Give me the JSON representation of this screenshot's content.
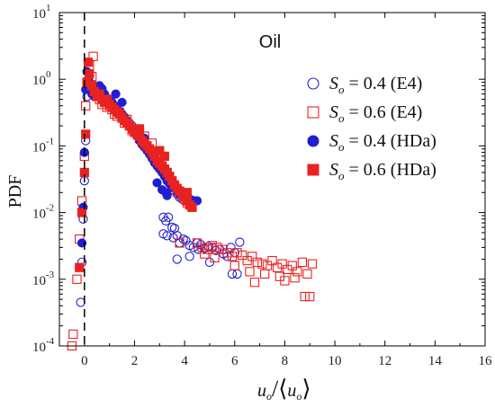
{
  "chart_data": {
    "type": "scatter",
    "title": "Oil",
    "ylabel": "PDF",
    "xlabel": "u_o/⟨u_o⟩",
    "xlabel_parts": {
      "lead": "u",
      "sub": "o",
      "slash": "/",
      "open": "⟨",
      "inner": "u",
      "inner_sub": "o",
      "close": "⟩"
    },
    "xlim": [
      -1,
      16
    ],
    "ylim_log10": [
      -4,
      1
    ],
    "yscale": "log",
    "x_ticks": [
      0,
      2,
      4,
      6,
      8,
      10,
      12,
      14,
      16
    ],
    "x_tick_labels": [
      "0",
      "2",
      "4",
      "6",
      "8",
      "10",
      "12",
      "14",
      "16"
    ],
    "y_ticks_exp": [
      -4,
      -3,
      -2,
      -1,
      0,
      1
    ],
    "y_tick_base": "10",
    "y_tick_exponents": [
      "-4",
      "-3",
      "-2",
      "-1",
      "0",
      "1"
    ],
    "reference_line_x": 0,
    "grid": false,
    "legend_placement": "top-right",
    "series": [
      {
        "name": "S_o = 0.4 (E4)",
        "label": {
          "sym": "S",
          "sub": "o",
          "rest": " = 0.4 (E4)"
        },
        "marker": "circle-open",
        "color": "#1f1fd1",
        "points": [
          [
            -0.15,
            0.00045
          ],
          [
            -0.1,
            0.0018
          ],
          [
            -0.05,
            0.008
          ],
          [
            0,
            0.03
          ],
          [
            0.05,
            0.12
          ],
          [
            0.1,
            0.55
          ],
          [
            0.15,
            0.8
          ],
          [
            0.2,
            0.9
          ],
          [
            0.3,
            0.75
          ],
          [
            0.4,
            0.62
          ],
          [
            0.5,
            0.55
          ],
          [
            0.6,
            0.6
          ],
          [
            0.7,
            0.65
          ],
          [
            0.8,
            0.52
          ],
          [
            0.9,
            0.5
          ],
          [
            1.0,
            0.48
          ],
          [
            1.1,
            0.42
          ],
          [
            1.2,
            0.38
          ],
          [
            1.3,
            0.35
          ],
          [
            1.4,
            0.32
          ],
          [
            1.5,
            0.3
          ],
          [
            1.6,
            0.27
          ],
          [
            1.7,
            0.24
          ],
          [
            1.8,
            0.22
          ],
          [
            1.9,
            0.2
          ],
          [
            2.0,
            0.18
          ],
          [
            2.1,
            0.16
          ],
          [
            2.2,
            0.14
          ],
          [
            2.3,
            0.12
          ],
          [
            2.4,
            0.11
          ],
          [
            2.5,
            0.095
          ],
          [
            2.6,
            0.085
          ],
          [
            2.7,
            0.075
          ],
          [
            2.8,
            0.065
          ],
          [
            2.9,
            0.055
          ],
          [
            3.0,
            0.05
          ],
          [
            3.1,
            0.042
          ],
          [
            3.2,
            0.036
          ],
          [
            3.3,
            0.03
          ],
          [
            3.4,
            0.027
          ],
          [
            3.5,
            0.024
          ],
          [
            3.6,
            0.021
          ],
          [
            3.7,
            0.019
          ],
          [
            3.8,
            0.017
          ],
          [
            3.9,
            0.016
          ],
          [
            4.0,
            0.015
          ],
          [
            4.2,
            0.016
          ],
          [
            4.4,
            0.015
          ],
          [
            3.15,
            0.0085
          ],
          [
            3.25,
            0.0075
          ],
          [
            3.35,
            0.0085
          ],
          [
            3.5,
            0.006
          ],
          [
            3.6,
            0.0058
          ],
          [
            3.15,
            0.0048
          ],
          [
            3.3,
            0.0045
          ],
          [
            3.55,
            0.0042
          ],
          [
            3.7,
            0.0045
          ],
          [
            3.8,
            0.0035
          ],
          [
            3.95,
            0.004
          ],
          [
            4.05,
            0.0038
          ],
          [
            4.2,
            0.0032
          ],
          [
            4.35,
            0.003
          ],
          [
            4.5,
            0.0035
          ],
          [
            4.65,
            0.0033
          ],
          [
            4.8,
            0.0029
          ],
          [
            4.95,
            0.0031
          ],
          [
            5.1,
            0.003
          ],
          [
            5.25,
            0.0027
          ],
          [
            5.4,
            0.0028
          ],
          [
            5.55,
            0.0024
          ],
          [
            5.7,
            0.0022
          ],
          [
            5.85,
            0.003
          ],
          [
            6.0,
            0.0025
          ],
          [
            6.2,
            0.0036
          ],
          [
            3.7,
            0.002
          ],
          [
            4.2,
            0.0022
          ],
          [
            5.0,
            0.0018
          ],
          [
            5.9,
            0.0012
          ],
          [
            6.1,
            0.0012
          ],
          [
            4.55,
            0.0028
          ]
        ]
      },
      {
        "name": "S_o = 0.6 (E4)",
        "label": {
          "sym": "S",
          "sub": "o",
          "rest": " = 0.6 (E4)"
        },
        "marker": "square-open",
        "color": "#e8231f",
        "points": [
          [
            -0.5,
            0.0001
          ],
          [
            -0.45,
            0.00015
          ],
          [
            -0.3,
            0.001
          ],
          [
            -0.2,
            0.004
          ],
          [
            -0.1,
            0.015
          ],
          [
            0,
            0.07
          ],
          [
            0.05,
            0.4
          ],
          [
            0.1,
            0.9
          ],
          [
            0.2,
            1.6
          ],
          [
            0.3,
            1.1
          ],
          [
            0.4,
            0.7
          ],
          [
            0.5,
            0.6
          ],
          [
            0.6,
            0.5
          ],
          [
            0.7,
            0.42
          ],
          [
            0.8,
            0.45
          ],
          [
            0.9,
            0.38
          ],
          [
            1.0,
            0.4
          ],
          [
            1.1,
            0.35
          ],
          [
            1.2,
            0.3
          ],
          [
            1.3,
            0.28
          ],
          [
            1.4,
            0.32
          ],
          [
            1.5,
            0.26
          ],
          [
            1.6,
            0.22
          ],
          [
            1.7,
            0.25
          ],
          [
            1.8,
            0.2
          ],
          [
            1.9,
            0.17
          ],
          [
            2.0,
            0.16
          ],
          [
            2.1,
            0.18
          ],
          [
            2.2,
            0.13
          ],
          [
            2.3,
            0.12
          ],
          [
            2.4,
            0.14
          ],
          [
            2.5,
            0.1
          ],
          [
            2.6,
            0.09
          ],
          [
            2.7,
            0.11
          ],
          [
            2.8,
            0.07
          ],
          [
            2.9,
            0.065
          ],
          [
            3.0,
            0.06
          ],
          [
            3.1,
            0.05
          ],
          [
            3.2,
            0.045
          ],
          [
            3.3,
            0.04
          ],
          [
            3.4,
            0.033
          ],
          [
            3.5,
            0.028
          ],
          [
            3.6,
            0.025
          ],
          [
            3.7,
            0.022
          ],
          [
            3.8,
            0.02
          ],
          [
            3.9,
            0.018
          ],
          [
            4.0,
            0.016
          ],
          [
            4.1,
            0.014
          ],
          [
            4.3,
            0.012
          ],
          [
            4.5,
            0.0035
          ],
          [
            4.7,
            0.003
          ],
          [
            4.9,
            0.0028
          ],
          [
            5.1,
            0.0032
          ],
          [
            5.3,
            0.003
          ],
          [
            5.5,
            0.0028
          ],
          [
            5.7,
            0.0025
          ],
          [
            5.9,
            0.0022
          ],
          [
            6.1,
            0.0025
          ],
          [
            6.3,
            0.0023
          ],
          [
            6.5,
            0.0019
          ],
          [
            6.7,
            0.0022
          ],
          [
            6.9,
            0.0018
          ],
          [
            7.1,
            0.0017
          ],
          [
            7.3,
            0.0016
          ],
          [
            7.5,
            0.0019
          ],
          [
            7.7,
            0.0015
          ],
          [
            7.9,
            0.0017
          ],
          [
            8.1,
            0.0014
          ],
          [
            8.3,
            0.0016
          ],
          [
            8.5,
            0.0013
          ],
          [
            8.7,
            0.0018
          ],
          [
            8.9,
            0.0012
          ],
          [
            9.1,
            0.0017
          ],
          [
            6.0,
            0.0016
          ],
          [
            6.6,
            0.0013
          ],
          [
            7.2,
            0.0012
          ],
          [
            7.8,
            0.0011
          ],
          [
            8.4,
            0.00105
          ],
          [
            6.8,
            0.0009
          ],
          [
            8.0,
            0.00095
          ],
          [
            8.8,
            0.00055
          ],
          [
            9.0,
            0.00055
          ],
          [
            5.2,
            0.0021
          ],
          [
            4.8,
            0.0024
          ],
          [
            3.8,
            0.0035
          ],
          [
            0.35,
            2.2
          ]
        ]
      },
      {
        "name": "S_o = 0.4 (HDa)",
        "label": {
          "sym": "S",
          "sub": "o",
          "rest": " = 0.4 (HDa)"
        },
        "marker": "circle-filled",
        "color": "#1f1fd1",
        "points": [
          [
            -0.1,
            0.0035
          ],
          [
            -0.05,
            0.012
          ],
          [
            0,
            0.08
          ],
          [
            0.05,
            0.7
          ],
          [
            0.1,
            1.3
          ],
          [
            0.15,
            1.0
          ],
          [
            0.2,
            0.7
          ],
          [
            0.3,
            0.6
          ],
          [
            0.4,
            0.55
          ],
          [
            0.5,
            0.7
          ],
          [
            0.6,
            0.8
          ],
          [
            0.7,
            0.72
          ],
          [
            0.8,
            0.6
          ],
          [
            0.9,
            0.52
          ],
          [
            1.0,
            0.48
          ],
          [
            1.1,
            0.45
          ],
          [
            1.2,
            0.4
          ],
          [
            1.3,
            0.36
          ],
          [
            1.4,
            0.33
          ],
          [
            1.5,
            0.3
          ],
          [
            1.6,
            0.26
          ],
          [
            1.7,
            0.23
          ],
          [
            1.8,
            0.2
          ],
          [
            1.9,
            0.18
          ],
          [
            2.0,
            0.16
          ],
          [
            2.1,
            0.14
          ],
          [
            2.2,
            0.12
          ],
          [
            2.3,
            0.105
          ],
          [
            2.4,
            0.095
          ],
          [
            2.5,
            0.085
          ],
          [
            2.6,
            0.075
          ],
          [
            2.7,
            0.065
          ],
          [
            2.8,
            0.056
          ],
          [
            2.9,
            0.05
          ],
          [
            3.0,
            0.045
          ],
          [
            3.1,
            0.04
          ],
          [
            3.2,
            0.035
          ],
          [
            3.3,
            0.031
          ],
          [
            3.4,
            0.028
          ],
          [
            3.5,
            0.025
          ],
          [
            3.6,
            0.023
          ],
          [
            3.7,
            0.021
          ],
          [
            3.8,
            0.019
          ],
          [
            3.9,
            0.018
          ],
          [
            4.0,
            0.017
          ],
          [
            4.1,
            0.016
          ],
          [
            4.2,
            0.016
          ],
          [
            4.35,
            0.015
          ],
          [
            4.5,
            0.015
          ],
          [
            1.25,
            0.6
          ],
          [
            1.5,
            0.45
          ],
          [
            2.4,
            0.13
          ],
          [
            3.1,
            0.022
          ],
          [
            3.25,
            0.02
          ],
          [
            3.3,
            0.018
          ],
          [
            2.9,
            0.028
          ]
        ]
      },
      {
        "name": "S_o = 0.6 (HDa)",
        "label": {
          "sym": "S",
          "sub": "o",
          "rest": " = 0.6 (HDa)"
        },
        "marker": "square-filled",
        "color": "#e8231f",
        "points": [
          [
            -0.2,
            0.0015
          ],
          [
            -0.1,
            0.01
          ],
          [
            0,
            0.04
          ],
          [
            0.05,
            0.15
          ],
          [
            0.1,
            0.9
          ],
          [
            0.15,
            1.8
          ],
          [
            0.2,
            1.2
          ],
          [
            0.3,
            0.8
          ],
          [
            0.4,
            0.65
          ],
          [
            0.5,
            0.55
          ],
          [
            0.6,
            0.6
          ],
          [
            0.7,
            0.5
          ],
          [
            0.8,
            0.45
          ],
          [
            0.9,
            0.5
          ],
          [
            1.0,
            0.42
          ],
          [
            1.1,
            0.38
          ],
          [
            1.2,
            0.35
          ],
          [
            1.3,
            0.32
          ],
          [
            1.4,
            0.3
          ],
          [
            1.5,
            0.27
          ],
          [
            1.6,
            0.24
          ],
          [
            1.7,
            0.22
          ],
          [
            1.8,
            0.2
          ],
          [
            1.9,
            0.18
          ],
          [
            2.0,
            0.16
          ],
          [
            2.1,
            0.15
          ],
          [
            2.2,
            0.14
          ],
          [
            2.3,
            0.12
          ],
          [
            2.4,
            0.11
          ],
          [
            2.5,
            0.1
          ],
          [
            2.6,
            0.09
          ],
          [
            2.7,
            0.08
          ],
          [
            2.8,
            0.07
          ],
          [
            2.9,
            0.06
          ],
          [
            3.0,
            0.055
          ],
          [
            3.1,
            0.05
          ],
          [
            3.2,
            0.045
          ],
          [
            3.3,
            0.04
          ],
          [
            3.4,
            0.035
          ],
          [
            3.5,
            0.03
          ],
          [
            3.6,
            0.026
          ],
          [
            3.7,
            0.023
          ],
          [
            3.8,
            0.021
          ],
          [
            3.9,
            0.019
          ],
          [
            4.0,
            0.017
          ],
          [
            4.1,
            0.015
          ],
          [
            4.2,
            0.013
          ],
          [
            4.3,
            0.012
          ],
          [
            4.1,
            0.02
          ],
          [
            3.0,
            0.085
          ],
          [
            3.2,
            0.07
          ],
          [
            2.2,
            0.18
          ]
        ]
      }
    ]
  }
}
